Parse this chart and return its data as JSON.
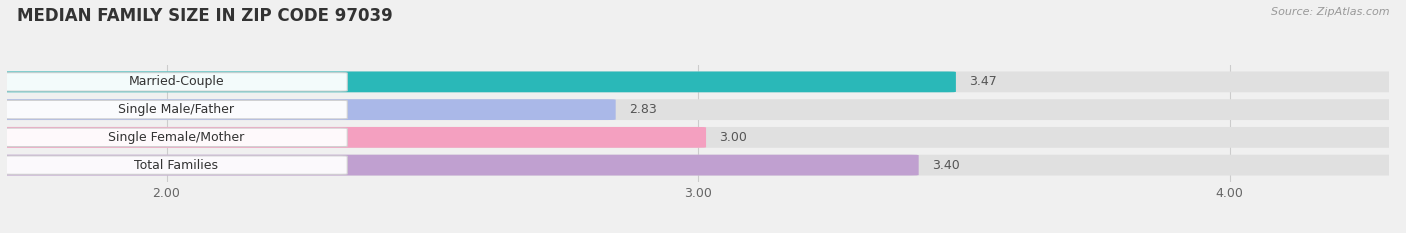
{
  "title": "MEDIAN FAMILY SIZE IN ZIP CODE 97039",
  "source": "Source: ZipAtlas.com",
  "categories": [
    "Married-Couple",
    "Single Male/Father",
    "Single Female/Mother",
    "Total Families"
  ],
  "values": [
    3.47,
    2.83,
    3.0,
    3.4
  ],
  "bar_colors": [
    "#2ab8b8",
    "#aab8e8",
    "#f4a0c0",
    "#c0a0d0"
  ],
  "xlim": [
    1.7,
    4.3
  ],
  "xstart": 1.7,
  "xticks": [
    2.0,
    3.0,
    4.0
  ],
  "xtick_labels": [
    "2.00",
    "3.00",
    "4.00"
  ],
  "background_color": "#f0f0f0",
  "bar_background": "#e8e8e8",
  "bar_height": 0.72,
  "title_fontsize": 12,
  "label_fontsize": 9,
  "value_fontsize": 9,
  "source_fontsize": 8
}
